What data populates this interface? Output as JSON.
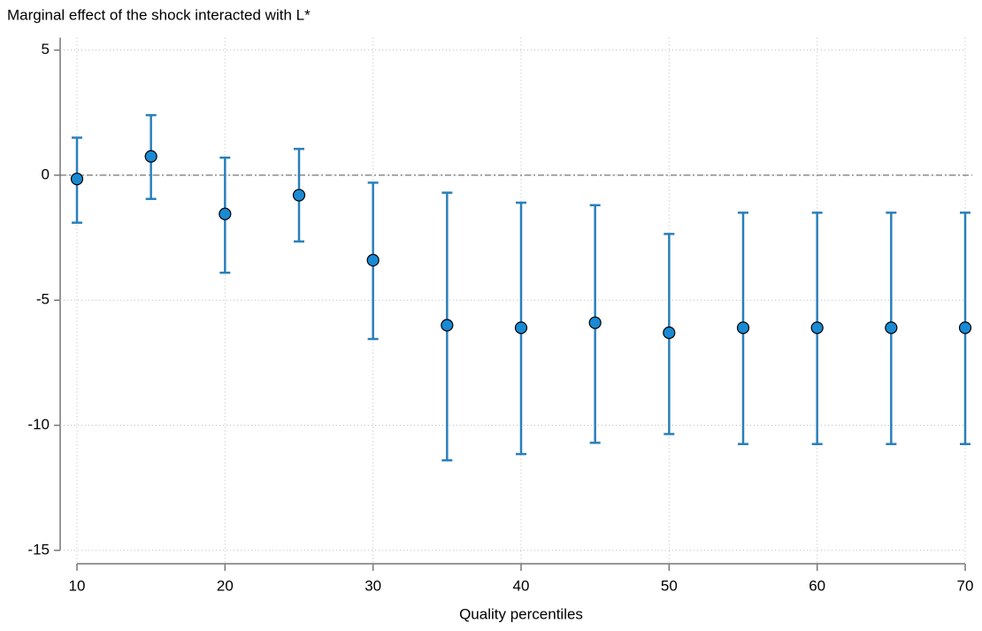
{
  "chart_data": {
    "type": "errorbar",
    "title": "Marginal effect of the shock interacted with L*",
    "x_label": "Quality percentiles",
    "x": [
      10,
      15,
      20,
      25,
      30,
      35,
      40,
      45,
      50,
      55,
      60,
      65,
      70
    ],
    "series": [
      {
        "color": "#1a8ad4",
        "bar_color": "#2a7fba",
        "values": [
          -0.15,
          0.75,
          -1.55,
          -0.8,
          -3.4,
          -6.0,
          -6.1,
          -5.9,
          -6.3,
          -6.1,
          -6.1,
          -6.1,
          -6.1
        ],
        "lower": [
          -1.9,
          -0.95,
          -3.9,
          -2.65,
          -6.55,
          -11.4,
          -11.15,
          -10.7,
          -10.35,
          -10.75,
          -10.75,
          -10.75,
          -10.75
        ],
        "upper": [
          1.5,
          2.4,
          0.7,
          1.05,
          -0.3,
          -0.7,
          -1.1,
          -1.2,
          -2.35,
          -1.5,
          -1.5,
          -1.5,
          -1.5
        ]
      }
    ],
    "xlim": [
      10,
      70
    ],
    "xticks": [
      10,
      20,
      30,
      40,
      50,
      60,
      70
    ],
    "ylim": [
      -15.5,
      5.5
    ],
    "yticks": [
      -15,
      -10,
      -5,
      0,
      5
    ],
    "reference_line": 0,
    "grid": true
  }
}
